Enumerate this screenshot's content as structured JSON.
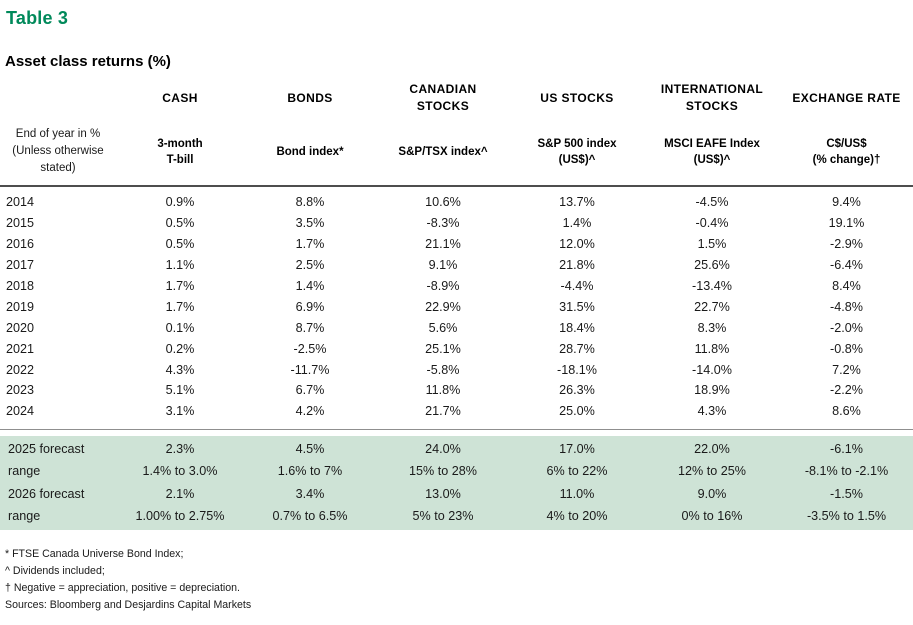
{
  "page": {
    "table_label": "Table 3",
    "title": "Asset class returns (%)"
  },
  "colors": {
    "accent_green": "#00895a",
    "forecast_row_bg": "#cee3d6",
    "header_rule": "#4d4d4d"
  },
  "table": {
    "row_header_lines": [
      "End of year in %",
      "(Unless otherwise",
      "stated)"
    ],
    "columns": [
      {
        "title_lines": [
          "CASH"
        ],
        "sub_lines": [
          "3-month",
          "T-bill"
        ]
      },
      {
        "title_lines": [
          "BONDS"
        ],
        "sub_lines": [
          "Bond index*"
        ]
      },
      {
        "title_lines": [
          "CANADIAN",
          "STOCKS"
        ],
        "sub_lines": [
          "S&P/TSX index^"
        ]
      },
      {
        "title_lines": [
          "US STOCKS"
        ],
        "sub_lines": [
          "S&P 500 index",
          "(US$)^"
        ]
      },
      {
        "title_lines": [
          "INTERNATIONAL",
          "STOCKS"
        ],
        "sub_lines": [
          "MSCI EAFE Index",
          "(US$)^"
        ]
      },
      {
        "title_lines": [
          "EXCHANGE RATE"
        ],
        "sub_lines": [
          "C$/US$",
          "(% change)†"
        ]
      }
    ],
    "year_rows": [
      {
        "label": "2014",
        "values": [
          "0.9%",
          "8.8%",
          "10.6%",
          "13.7%",
          "-4.5%",
          "9.4%"
        ]
      },
      {
        "label": "2015",
        "values": [
          "0.5%",
          "3.5%",
          "-8.3%",
          "1.4%",
          "-0.4%",
          "19.1%"
        ]
      },
      {
        "label": "2016",
        "values": [
          "0.5%",
          "1.7%",
          "21.1%",
          "12.0%",
          "1.5%",
          "-2.9%"
        ]
      },
      {
        "label": "2017",
        "values": [
          "1.1%",
          "2.5%",
          "9.1%",
          "21.8%",
          "25.6%",
          "-6.4%"
        ]
      },
      {
        "label": "2018",
        "values": [
          "1.7%",
          "1.4%",
          "-8.9%",
          "-4.4%",
          "-13.4%",
          "8.4%"
        ]
      },
      {
        "label": "2019",
        "values": [
          "1.7%",
          "6.9%",
          "22.9%",
          "31.5%",
          "22.7%",
          "-4.8%"
        ]
      },
      {
        "label": "2020",
        "values": [
          "0.1%",
          "8.7%",
          "5.6%",
          "18.4%",
          "8.3%",
          "-2.0%"
        ]
      },
      {
        "label": "2021",
        "values": [
          "0.2%",
          "-2.5%",
          "25.1%",
          "28.7%",
          "11.8%",
          "-0.8%"
        ]
      },
      {
        "label": "2022",
        "values": [
          "4.3%",
          "-11.7%",
          "-5.8%",
          "-18.1%",
          "-14.0%",
          "7.2%"
        ]
      },
      {
        "label": "2023",
        "values": [
          "5.1%",
          "6.7%",
          "11.8%",
          "26.3%",
          "18.9%",
          "-2.2%"
        ]
      },
      {
        "label": "2024",
        "values": [
          "3.1%",
          "4.2%",
          "21.7%",
          "25.0%",
          "4.3%",
          "8.6%"
        ]
      }
    ],
    "forecast_rows": [
      {
        "label": "2025 forecast",
        "values": [
          "2.3%",
          "4.5%",
          "24.0%",
          "17.0%",
          "22.0%",
          "-6.1%"
        ]
      },
      {
        "label": "range",
        "values": [
          "1.4% to 3.0%",
          "1.6% to 7%",
          "15% to 28%",
          "6% to 22%",
          "12% to 25%",
          "-8.1% to -2.1%"
        ]
      },
      {
        "label": "2026 forecast",
        "values": [
          "2.1%",
          "3.4%",
          "13.0%",
          "11.0%",
          "9.0%",
          "-1.5%"
        ]
      },
      {
        "label": "range",
        "values": [
          "1.00% to 2.75%",
          "0.7% to 6.5%",
          "5% to 23%",
          "4% to 20%",
          "0% to 16%",
          "-3.5% to 1.5%"
        ]
      }
    ]
  },
  "footnotes": [
    "* FTSE Canada Universe Bond Index;",
    "^ Dividends included;",
    "† Negative = appreciation, positive = depreciation.",
    "Sources: Bloomberg and Desjardins Capital Markets"
  ]
}
